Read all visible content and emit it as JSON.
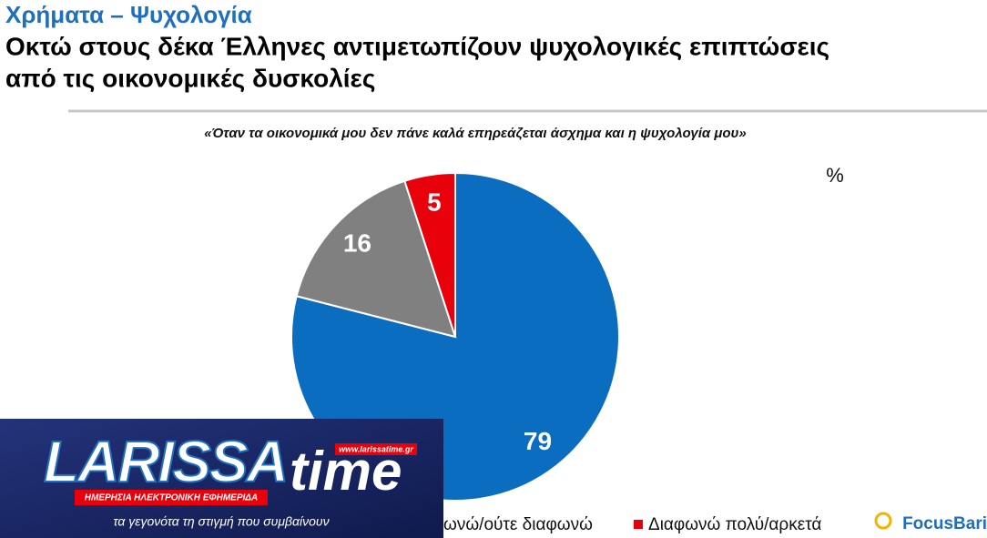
{
  "header": {
    "kicker": "Χρήματα – Ψυχολογία",
    "title_lines": [
      "Οκτώ στους δέκα Έλληνες αντιμετωπίζουν ψυχολογικές επιπτώσεις",
      "από τις οικονομικές δυσκολίες"
    ]
  },
  "chart_data": {
    "type": "pie",
    "subtitle": "«Όταν τα οικονομικά μου δεν πάνε καλά επηρεάζεται άσχημα και η ψυχολογία μου»",
    "unit_label": "%",
    "categories": [
      null,
      "ωνώ/ούτε διαφωνώ",
      "Διαφωνώ πολύ/αρκετά"
    ],
    "values": [
      79,
      16,
      5
    ],
    "colors": [
      "#0b6dbf",
      "#808080",
      "#e8000b"
    ]
  },
  "logo": {
    "name_main": "LARISSA",
    "name_time": "time",
    "url": "www.larissatime.gr",
    "tagline_bar": "ΗΜΕΡΗΣΙΑ ΗΛΕΚΤΡΟΝΙΚΗ ΕΦΗΜΕΡΙΔΑ",
    "slogan": "τα γεγονότα τη στιγμή που συμβαίνουν"
  },
  "brand": "FocusBari"
}
